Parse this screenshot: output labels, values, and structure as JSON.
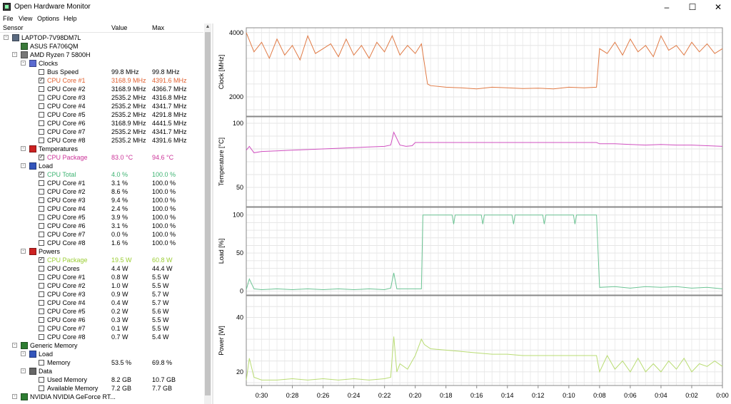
{
  "window": {
    "title": "Open Hardware Monitor",
    "minimize": "–",
    "maximize": "☐",
    "close": "✕"
  },
  "menu": [
    "File",
    "View",
    "Options",
    "Help"
  ],
  "columns": {
    "sensor": "Sensor",
    "value": "Value",
    "max": "Max"
  },
  "tree": [
    {
      "level": 0,
      "exp": "-",
      "icon": "laptop-icon",
      "label": "LAPTOP-7V98DM7L"
    },
    {
      "level": 1,
      "exp": "",
      "icon": "motherboard-icon",
      "label": "ASUS FA706QM"
    },
    {
      "level": 1,
      "exp": "-",
      "icon": "cpu-icon",
      "label": "AMD Ryzen 7 5800H"
    },
    {
      "level": 2,
      "exp": "-",
      "icon": "clock-icon",
      "label": "Clocks"
    },
    {
      "level": 3,
      "check": false,
      "label": "Bus Speed",
      "value": "99.8 MHz",
      "max": "99.8 MHz"
    },
    {
      "level": 3,
      "check": true,
      "label": "CPU Core #1",
      "value": "3168.9 MHz",
      "max": "4391.6 MHz",
      "color": "#e06030"
    },
    {
      "level": 3,
      "check": false,
      "label": "CPU Core #2",
      "value": "3168.9 MHz",
      "max": "4366.7 MHz"
    },
    {
      "level": 3,
      "check": false,
      "label": "CPU Core #3",
      "value": "2535.2 MHz",
      "max": "4316.8 MHz"
    },
    {
      "level": 3,
      "check": false,
      "label": "CPU Core #4",
      "value": "2535.2 MHz",
      "max": "4341.7 MHz"
    },
    {
      "level": 3,
      "check": false,
      "label": "CPU Core #5",
      "value": "2535.2 MHz",
      "max": "4291.8 MHz"
    },
    {
      "level": 3,
      "check": false,
      "label": "CPU Core #6",
      "value": "3168.9 MHz",
      "max": "4441.5 MHz"
    },
    {
      "level": 3,
      "check": false,
      "label": "CPU Core #7",
      "value": "2535.2 MHz",
      "max": "4341.7 MHz"
    },
    {
      "level": 3,
      "check": false,
      "label": "CPU Core #8",
      "value": "2535.2 MHz",
      "max": "4391.6 MHz"
    },
    {
      "level": 2,
      "exp": "-",
      "icon": "thermometer-icon",
      "label": "Temperatures"
    },
    {
      "level": 3,
      "check": true,
      "label": "CPU Package",
      "value": "83.0 °C",
      "max": "94.6 °C",
      "color": "#cc3399"
    },
    {
      "level": 2,
      "exp": "-",
      "icon": "load-icon",
      "label": "Load"
    },
    {
      "level": 3,
      "check": true,
      "label": "CPU Total",
      "value": "4.0 %",
      "max": "100.0 %",
      "color": "#3cb371"
    },
    {
      "level": 3,
      "check": false,
      "label": "CPU Core #1",
      "value": "3.1 %",
      "max": "100.0 %"
    },
    {
      "level": 3,
      "check": false,
      "label": "CPU Core #2",
      "value": "8.6 %",
      "max": "100.0 %"
    },
    {
      "level": 3,
      "check": false,
      "label": "CPU Core #3",
      "value": "9.4 %",
      "max": "100.0 %"
    },
    {
      "level": 3,
      "check": false,
      "label": "CPU Core #4",
      "value": "2.4 %",
      "max": "100.0 %"
    },
    {
      "level": 3,
      "check": false,
      "label": "CPU Core #5",
      "value": "3.9 %",
      "max": "100.0 %"
    },
    {
      "level": 3,
      "check": false,
      "label": "CPU Core #6",
      "value": "3.1 %",
      "max": "100.0 %"
    },
    {
      "level": 3,
      "check": false,
      "label": "CPU Core #7",
      "value": "0.0 %",
      "max": "100.0 %"
    },
    {
      "level": 3,
      "check": false,
      "label": "CPU Core #8",
      "value": "1.6 %",
      "max": "100.0 %"
    },
    {
      "level": 2,
      "exp": "-",
      "icon": "power-icon",
      "label": "Powers"
    },
    {
      "level": 3,
      "check": true,
      "label": "CPU Package",
      "value": "19.5 W",
      "max": "60.8 W",
      "color": "#9acd32"
    },
    {
      "level": 3,
      "check": false,
      "label": "CPU Cores",
      "value": "4.4 W",
      "max": "44.4 W"
    },
    {
      "level": 3,
      "check": false,
      "label": "CPU Core #1",
      "value": "0.8 W",
      "max": "5.5 W"
    },
    {
      "level": 3,
      "check": false,
      "label": "CPU Core #2",
      "value": "1.0 W",
      "max": "5.5 W"
    },
    {
      "level": 3,
      "check": false,
      "label": "CPU Core #3",
      "value": "0.9 W",
      "max": "5.7 W"
    },
    {
      "level": 3,
      "check": false,
      "label": "CPU Core #4",
      "value": "0.4 W",
      "max": "5.7 W"
    },
    {
      "level": 3,
      "check": false,
      "label": "CPU Core #5",
      "value": "0.2 W",
      "max": "5.6 W"
    },
    {
      "level": 3,
      "check": false,
      "label": "CPU Core #6",
      "value": "0.3 W",
      "max": "5.5 W"
    },
    {
      "level": 3,
      "check": false,
      "label": "CPU Core #7",
      "value": "0.1 W",
      "max": "5.5 W"
    },
    {
      "level": 3,
      "check": false,
      "label": "CPU Core #8",
      "value": "0.7 W",
      "max": "5.4 W"
    },
    {
      "level": 1,
      "exp": "-",
      "icon": "memory-icon",
      "label": "Generic Memory"
    },
    {
      "level": 2,
      "exp": "-",
      "icon": "load-icon",
      "label": "Load"
    },
    {
      "level": 3,
      "check": false,
      "label": "Memory",
      "value": "53.5 %",
      "max": "69.8 %"
    },
    {
      "level": 2,
      "exp": "-",
      "icon": "data-icon",
      "label": "Data"
    },
    {
      "level": 3,
      "check": false,
      "label": "Used Memory",
      "value": "8.2 GB",
      "max": "10.7 GB"
    },
    {
      "level": 3,
      "check": false,
      "label": "Available Memory",
      "value": "7.2 GB",
      "max": "7.7 GB"
    },
    {
      "level": 1,
      "exp": "-",
      "icon": "gpu-icon",
      "label": "NVIDIA NVIDIA GeForce RT..."
    }
  ],
  "icon_colors": {
    "laptop-icon": "#5a6a80",
    "motherboard-icon": "#3a7a3a",
    "cpu-icon": "#777777",
    "clock-icon": "#5a6ad0",
    "thermometer-icon": "#cc2222",
    "load-icon": "#3355bb",
    "power-icon": "#cc2222",
    "memory-icon": "#2e7d32",
    "data-icon": "#666666",
    "gpu-icon": "#2e7d32"
  },
  "chart_data": [
    {
      "type": "line",
      "ylabel": "Clock [MHz]",
      "yticks": [
        2000,
        4000
      ],
      "ylim": [
        1400,
        4150
      ],
      "color": "#e07a45",
      "x": [
        -31,
        -30.5,
        -30,
        -29.5,
        -29,
        -28.5,
        -28,
        -27.5,
        -27,
        -26.5,
        -26,
        -25.5,
        -25,
        -24.5,
        -24,
        -23.5,
        -23,
        -22.5,
        -22,
        -21.5,
        -21,
        -20.5,
        -20,
        -19.6,
        -19.2,
        -19,
        -18,
        -17,
        -16,
        -15,
        -14,
        -13,
        -12,
        -11,
        -10,
        -9,
        -8.2,
        -8,
        -7.5,
        -7,
        -6.5,
        -6,
        -5.5,
        -5,
        -4.5,
        -4,
        -3.5,
        -3,
        -2.5,
        -2,
        -1.5,
        -1,
        -0.5,
        0
      ],
      "y": [
        4000,
        3400,
        3700,
        3200,
        3800,
        3300,
        3600,
        3150,
        3900,
        3350,
        3500,
        3650,
        3250,
        3800,
        3300,
        3600,
        3200,
        3700,
        3400,
        3900,
        3300,
        3600,
        3350,
        3650,
        2400,
        2350,
        2300,
        2280,
        2250,
        2300,
        2280,
        2260,
        2270,
        2250,
        2300,
        2280,
        2300,
        3500,
        3350,
        3700,
        3300,
        3800,
        3400,
        3600,
        3250,
        3900,
        3450,
        3600,
        3300,
        3700,
        3400,
        3650,
        3350,
        3500
      ]
    },
    {
      "type": "line",
      "ylabel": "Temperature [°C]",
      "yticks": [
        50,
        100
      ],
      "ylim": [
        35,
        105
      ],
      "color": "#d050c0",
      "x": [
        -31,
        -30.8,
        -30.5,
        -30,
        -29,
        -28,
        -27,
        -26,
        -25,
        -24,
        -23,
        -22,
        -21.6,
        -21.4,
        -21,
        -20.6,
        -20.2,
        -20,
        -19,
        -18,
        -17,
        -16,
        -15,
        -14,
        -13,
        -12,
        -11,
        -10,
        -9,
        -8.2,
        -8,
        -7,
        -6,
        -5,
        -4,
        -3,
        -2,
        -1,
        0
      ],
      "y": [
        79,
        82,
        77,
        78,
        78.5,
        79,
        79.5,
        80,
        80.5,
        81,
        81.5,
        82,
        83,
        93,
        83,
        82,
        82.5,
        85,
        85,
        85,
        85,
        85,
        85,
        85,
        85,
        85,
        85,
        85,
        85,
        85,
        84,
        84,
        83.5,
        83,
        83.5,
        83,
        83,
        82.5,
        82
      ]
    },
    {
      "type": "line",
      "ylabel": "Load [%]",
      "yticks": [
        0,
        50,
        100
      ],
      "ylim": [
        -5,
        110
      ],
      "color": "#6cc494",
      "x": [
        -31,
        -30.8,
        -30.5,
        -30,
        -29,
        -28,
        -27,
        -26,
        -25,
        -24,
        -23,
        -22,
        -21.6,
        -21.4,
        -21.2,
        -21,
        -20,
        -19.6,
        -19.5,
        -18,
        -17.6,
        -17.5,
        -17.4,
        -17,
        -15.7,
        -15.6,
        -15.5,
        -15,
        -13.7,
        -13.6,
        -13.5,
        -13,
        -11.7,
        -11.6,
        -11.5,
        -11,
        -9.7,
        -9.6,
        -9.5,
        -9,
        -8.2,
        -8,
        -7,
        -6,
        -5,
        -4,
        -3,
        -2,
        -1,
        0
      ],
      "y": [
        2,
        16,
        3,
        2,
        3,
        2,
        3,
        2,
        3,
        2,
        3,
        2,
        4,
        24,
        3,
        3,
        3,
        3,
        100,
        100,
        100,
        88,
        100,
        100,
        100,
        88,
        100,
        100,
        100,
        88,
        100,
        100,
        100,
        88,
        100,
        100,
        100,
        88,
        100,
        100,
        100,
        5,
        6,
        4,
        6,
        5,
        6,
        4,
        5,
        3
      ]
    },
    {
      "type": "line",
      "ylabel": "Power [W]",
      "yticks": [
        20,
        40
      ],
      "ylim": [
        15,
        48
      ],
      "color": "#b9dc73",
      "x": [
        -31,
        -30.8,
        -30.5,
        -30,
        -29,
        -28,
        -27,
        -26,
        -25,
        -24,
        -23,
        -22,
        -21.6,
        -21.4,
        -21.2,
        -21,
        -20.5,
        -20,
        -19.6,
        -19.4,
        -19,
        -18,
        -17,
        -16,
        -15,
        -14,
        -13,
        -12,
        -11,
        -10,
        -9,
        -8.2,
        -8,
        -7.5,
        -7,
        -6.5,
        -6,
        -5.5,
        -5,
        -4.5,
        -4,
        -3.5,
        -3,
        -2.5,
        -2,
        -1.5,
        -1,
        -0.5,
        0
      ],
      "y": [
        17,
        25,
        18,
        17,
        17,
        17.5,
        17,
        17.5,
        17,
        17.5,
        17,
        17.5,
        18,
        33,
        20,
        23,
        21,
        26,
        32,
        30,
        28.5,
        28,
        27.5,
        27,
        26.5,
        26.5,
        26,
        26,
        26,
        26,
        26,
        26,
        20,
        26,
        21,
        24,
        20,
        25,
        20,
        23,
        20,
        24,
        21,
        25,
        20,
        23,
        22,
        24,
        22
      ]
    }
  ],
  "xaxis": {
    "ticks": [
      "0:30",
      "0:28",
      "0:26",
      "0:24",
      "0:22",
      "0:20",
      "0:18",
      "0:16",
      "0:14",
      "0:12",
      "0:10",
      "0:08",
      "0:06",
      "0:04",
      "0:02",
      "0:00"
    ],
    "tick_values": [
      -30,
      -28,
      -26,
      -24,
      -22,
      -20,
      -18,
      -16,
      -14,
      -12,
      -10,
      -8,
      -6,
      -4,
      -2,
      0
    ],
    "xlim": [
      -31,
      0
    ]
  }
}
